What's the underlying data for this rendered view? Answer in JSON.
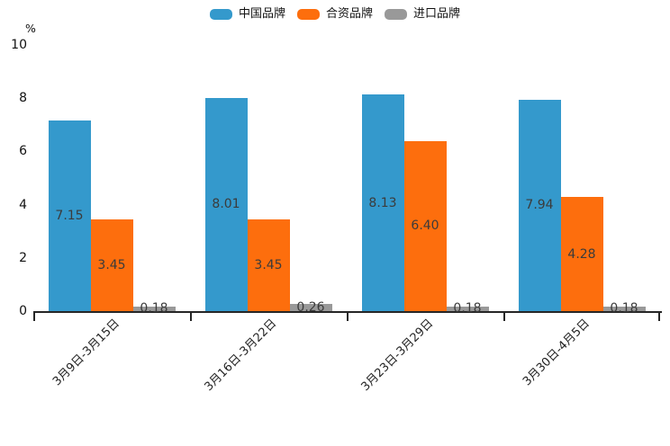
{
  "chart_data": {
    "type": "bar",
    "title": "",
    "xlabel": "",
    "ylabel": "%",
    "ylim": [
      0,
      10
    ],
    "yticks": [
      0,
      2,
      4,
      6,
      8,
      10
    ],
    "grid": false,
    "legend_position": "top",
    "value_labels": true,
    "value_label_decimals": 2,
    "categories": [
      "3月9日-3月15日",
      "3月16日-3月22日",
      "3月23日-3月29日",
      "3月30日-4月5日"
    ],
    "series": [
      {
        "name": "中国品牌",
        "slug": "china-brand",
        "color": "#3499CC",
        "values": [
          7.15,
          8.01,
          8.13,
          7.94
        ]
      },
      {
        "name": "合资品牌",
        "slug": "joint-venture-brand",
        "color": "#FD6E0D",
        "values": [
          3.45,
          3.45,
          6.4,
          4.28
        ]
      },
      {
        "name": "进口品牌",
        "slug": "imported-brand",
        "color": "#999999",
        "values": [
          0.18,
          0.26,
          0.18,
          0.18
        ]
      }
    ],
    "axis_color": "#262626",
    "value_label_color": "#3b3b3b"
  }
}
